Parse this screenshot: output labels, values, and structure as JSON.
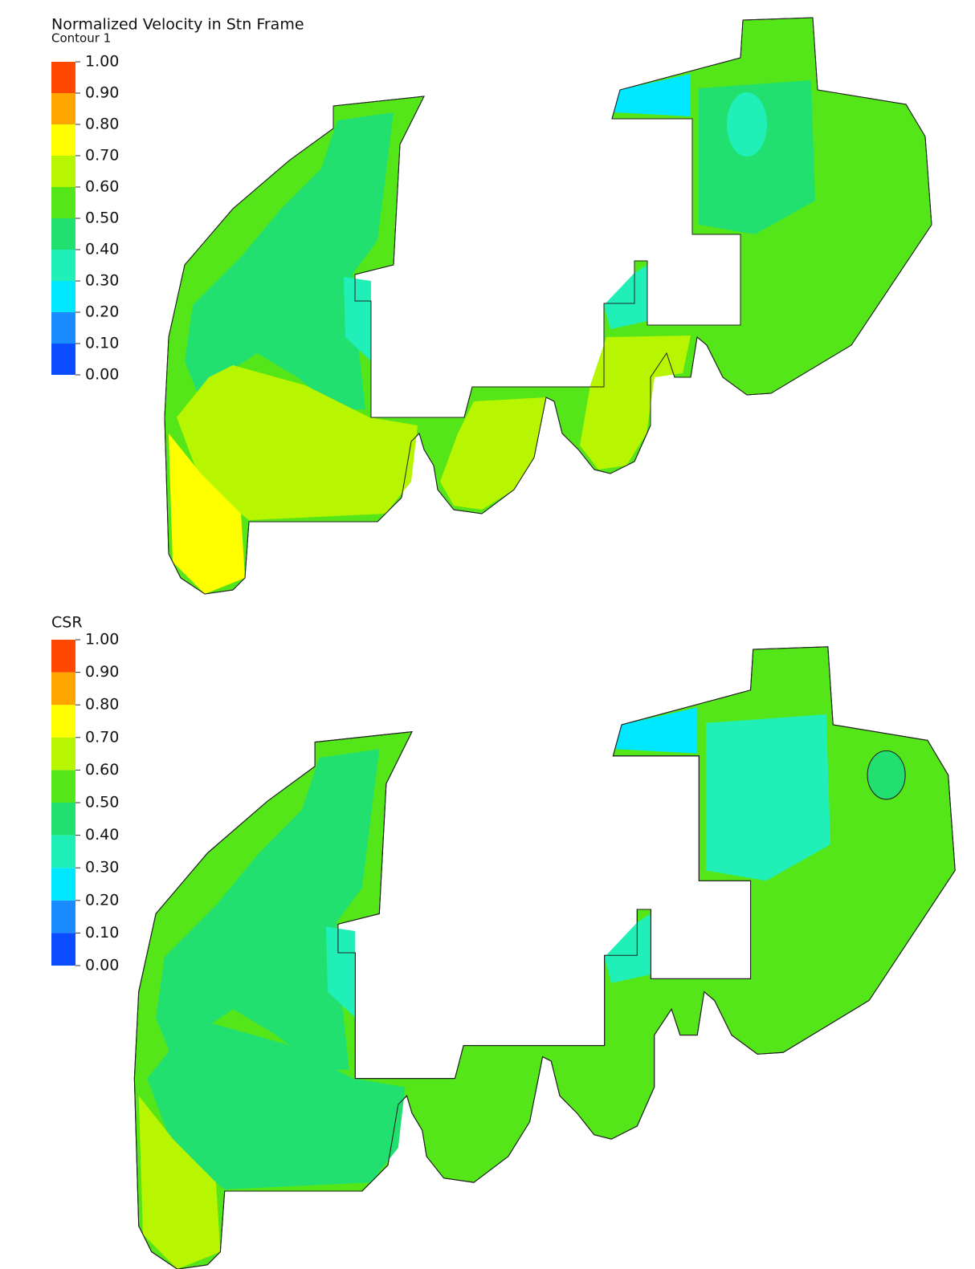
{
  "panels": [
    {
      "title": "Normalized Velocity in Stn Frame",
      "subtitle": "Contour 1",
      "legend": {
        "ticks": [
          {
            "value": 1,
            "label": "1.00"
          },
          {
            "value": 0.9,
            "label": "0.90"
          },
          {
            "value": 0.8,
            "label": "0.80"
          },
          {
            "value": 0.7,
            "label": "0.70"
          },
          {
            "value": 0.6,
            "label": "0.60"
          },
          {
            "value": 0.5,
            "label": "0.50"
          },
          {
            "value": 0.4,
            "label": "0.40"
          },
          {
            "value": 0.3,
            "label": "0.30"
          },
          {
            "value": 0.2,
            "label": "0.20"
          },
          {
            "value": 0.1,
            "label": "0.10"
          },
          {
            "value": 0,
            "label": "0.00"
          }
        ],
        "colors": [
          "#0a4cff",
          "#1a8cff",
          "#00e8ff",
          "#20f0b8",
          "#22e070",
          "#55e61a",
          "#b8f500",
          "#ffff00",
          "#ffa500",
          "#ff4800"
        ]
      }
    },
    {
      "title": "CSR",
      "legend": {
        "ticks": [
          {
            "value": 1,
            "label": "1.00"
          },
          {
            "value": 0.9,
            "label": "0.90"
          },
          {
            "value": 0.8,
            "label": "0.80"
          },
          {
            "value": 0.7,
            "label": "0.70"
          },
          {
            "value": 0.6,
            "label": "0.60"
          },
          {
            "value": 0.5,
            "label": "0.50"
          },
          {
            "value": 0.4,
            "label": "0.40"
          },
          {
            "value": 0.3,
            "label": "0.30"
          },
          {
            "value": 0.2,
            "label": "0.20"
          },
          {
            "value": 0.1,
            "label": "0.10"
          },
          {
            "value": 0,
            "label": "0.00"
          }
        ],
        "colors": [
          "#0a4cff",
          "#1a8cff",
          "#00e8ff",
          "#20f0b8",
          "#22e070",
          "#55e61a",
          "#b8f500",
          "#ffff00",
          "#ffa500",
          "#ff4800"
        ]
      }
    }
  ]
}
